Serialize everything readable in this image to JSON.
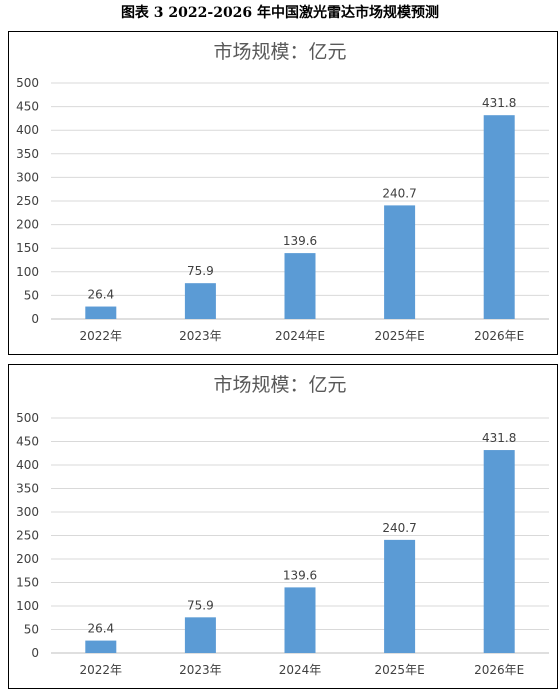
{
  "caption": "图表 3   2022-2026 年中国激光雷达市场规模预测",
  "colors": {
    "bar": "#5b9bd5",
    "grid": "#d9d9d9",
    "text": "#404040",
    "title": "#595959"
  },
  "chart_data": [
    {
      "type": "bar",
      "title": "市场规模：亿元",
      "categories": [
        "2022年",
        "2023年",
        "2024年E",
        "2025年E",
        "2026年E"
      ],
      "values": [
        26.4,
        75.9,
        139.6,
        240.7,
        431.8
      ],
      "data_labels": [
        "26.4",
        "75.9",
        "139.6",
        "240.7",
        "431.8"
      ],
      "y_ticks": [
        "0",
        "50",
        "100",
        "150",
        "200",
        "250",
        "300",
        "350",
        "400",
        "450",
        "500"
      ],
      "ylim": [
        0,
        500
      ],
      "grid": true,
      "legend": "none"
    },
    {
      "type": "bar",
      "title": "市场规模：亿元",
      "categories": [
        "2022年",
        "2023年",
        "2024年",
        "2025年E",
        "2026年E"
      ],
      "values": [
        26.4,
        75.9,
        139.6,
        240.7,
        431.8
      ],
      "data_labels": [
        "26.4",
        "75.9",
        "139.6",
        "240.7",
        "431.8"
      ],
      "y_ticks": [
        "0",
        "50",
        "100",
        "150",
        "200",
        "250",
        "300",
        "350",
        "400",
        "450",
        "500"
      ],
      "ylim": [
        0,
        500
      ],
      "grid": true,
      "legend": "none"
    }
  ]
}
